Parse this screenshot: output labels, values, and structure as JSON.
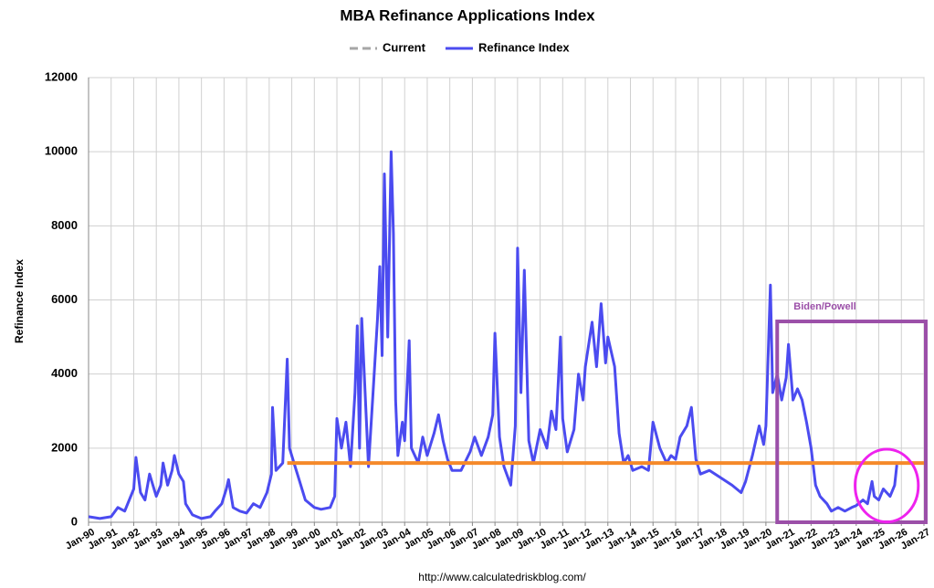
{
  "chart_data": {
    "type": "line",
    "title": "MBA Refinance Applications Index",
    "y_label": "Refinance Index",
    "source": "http://www.calculatedriskblog.com/",
    "xlim": [
      1990,
      2027
    ],
    "ylim": [
      0,
      12000
    ],
    "yticks": [
      0,
      2000,
      4000,
      6000,
      8000,
      10000,
      12000
    ],
    "xticks": [
      {
        "value": 1990,
        "label": "Jan-90"
      },
      {
        "value": 1991,
        "label": "Jan-91"
      },
      {
        "value": 1992,
        "label": "Jan-92"
      },
      {
        "value": 1993,
        "label": "Jan-93"
      },
      {
        "value": 1994,
        "label": "Jan-94"
      },
      {
        "value": 1995,
        "label": "Jan-95"
      },
      {
        "value": 1996,
        "label": "Jan-96"
      },
      {
        "value": 1997,
        "label": "Jan-97"
      },
      {
        "value": 1998,
        "label": "Jan-98"
      },
      {
        "value": 1999,
        "label": "Jan-99"
      },
      {
        "value": 2000,
        "label": "Jan-00"
      },
      {
        "value": 2001,
        "label": "Jan-01"
      },
      {
        "value": 2002,
        "label": "Jan-02"
      },
      {
        "value": 2003,
        "label": "Jan-03"
      },
      {
        "value": 2004,
        "label": "Jan-04"
      },
      {
        "value": 2005,
        "label": "Jan-05"
      },
      {
        "value": 2006,
        "label": "Jan-06"
      },
      {
        "value": 2007,
        "label": "Jan-07"
      },
      {
        "value": 2008,
        "label": "Jan-08"
      },
      {
        "value": 2009,
        "label": "Jan-09"
      },
      {
        "value": 2010,
        "label": "Jan-10"
      },
      {
        "value": 2011,
        "label": "Jan-11"
      },
      {
        "value": 2012,
        "label": "Jan-12"
      },
      {
        "value": 2013,
        "label": "Jan-13"
      },
      {
        "value": 2014,
        "label": "Jan-14"
      },
      {
        "value": 2015,
        "label": "Jan-15"
      },
      {
        "value": 2016,
        "label": "Jan-16"
      },
      {
        "value": 2017,
        "label": "Jan-17"
      },
      {
        "value": 2018,
        "label": "Jan-18"
      },
      {
        "value": 2019,
        "label": "Jan-19"
      },
      {
        "value": 2020,
        "label": "Jan-20"
      },
      {
        "value": 2021,
        "label": "Jan-21"
      },
      {
        "value": 2022,
        "label": "Jan-22"
      },
      {
        "value": 2023,
        "label": "Jan-23"
      },
      {
        "value": 2024,
        "label": "Jan-24"
      },
      {
        "value": 2025,
        "label": "Jan-25"
      },
      {
        "value": 2026,
        "label": "Jan-26"
      },
      {
        "value": 2027,
        "label": "Jan-27"
      }
    ],
    "grid": true,
    "series": [
      {
        "name": "Current",
        "color": "#f5892a",
        "legend_color": "#a6a6a6",
        "dashed_legend": true,
        "x": [
          1998.8,
          2027
        ],
        "values": [
          1600,
          1600
        ]
      },
      {
        "name": "Refinance Index",
        "color": "#4b4bf0",
        "x": [
          1990.0,
          1990.5,
          1991.0,
          1991.3,
          1991.6,
          1992.0,
          1992.1,
          1992.3,
          1992.5,
          1992.7,
          1992.9,
          1993.0,
          1993.2,
          1993.3,
          1993.5,
          1993.7,
          1993.8,
          1994.0,
          1994.2,
          1994.3,
          1994.6,
          1995.0,
          1995.4,
          1995.6,
          1995.9,
          1996.1,
          1996.2,
          1996.4,
          1996.7,
          1997.0,
          1997.3,
          1997.6,
          1997.9,
          1998.1,
          1998.15,
          1998.3,
          1998.6,
          1998.8,
          1998.9,
          1999.1,
          1999.3,
          1999.6,
          2000.0,
          2000.3,
          2000.7,
          2000.9,
          2001.0,
          2001.2,
          2001.4,
          2001.6,
          2001.8,
          2001.9,
          2002.0,
          2002.1,
          2002.4,
          2002.6,
          2002.8,
          2002.9,
          2003.0,
          2003.1,
          2003.25,
          2003.4,
          2003.5,
          2003.6,
          2003.7,
          2003.9,
          2004.0,
          2004.2,
          2004.3,
          2004.6,
          2004.8,
          2005.0,
          2005.3,
          2005.5,
          2005.7,
          2005.9,
          2006.1,
          2006.5,
          2006.9,
          2007.1,
          2007.4,
          2007.7,
          2007.9,
          2008.0,
          2008.2,
          2008.4,
          2008.7,
          2008.9,
          2009.0,
          2009.15,
          2009.3,
          2009.5,
          2009.7,
          2010.0,
          2010.3,
          2010.5,
          2010.7,
          2010.9,
          2011.0,
          2011.2,
          2011.5,
          2011.7,
          2011.9,
          2012.0,
          2012.3,
          2012.5,
          2012.7,
          2012.9,
          2013.0,
          2013.3,
          2013.5,
          2013.7,
          2013.9,
          2014.1,
          2014.5,
          2014.8,
          2015.0,
          2015.3,
          2015.6,
          2015.8,
          2016.0,
          2016.2,
          2016.5,
          2016.7,
          2016.9,
          2017.1,
          2017.5,
          2018.0,
          2018.5,
          2018.9,
          2019.1,
          2019.4,
          2019.7,
          2019.9,
          2020.0,
          2020.2,
          2020.3,
          2020.5,
          2020.7,
          2020.9,
          2021.0,
          2021.2,
          2021.4,
          2021.6,
          2021.8,
          2022.0,
          2022.2,
          2022.4,
          2022.7,
          2022.9,
          2023.2,
          2023.5,
          2023.8,
          2024.0,
          2024.3,
          2024.5,
          2024.7,
          2024.8,
          2025.0,
          2025.2,
          2025.5,
          2025.7,
          2025.8
        ],
        "values": [
          150,
          100,
          150,
          400,
          300,
          900,
          1750,
          800,
          600,
          1300,
          900,
          700,
          1000,
          1600,
          1000,
          1400,
          1800,
          1300,
          1100,
          500,
          200,
          100,
          150,
          300,
          500,
          900,
          1150,
          400,
          300,
          250,
          500,
          400,
          800,
          1300,
          3100,
          1400,
          1600,
          4400,
          2000,
          1600,
          1200,
          600,
          400,
          350,
          400,
          700,
          2800,
          2000,
          2700,
          1500,
          3500,
          5300,
          2000,
          5500,
          1500,
          3500,
          5500,
          6900,
          4500,
          9400,
          5000,
          10000,
          7800,
          3300,
          1800,
          2700,
          2200,
          4900,
          2000,
          1600,
          2300,
          1800,
          2400,
          2900,
          2200,
          1700,
          1400,
          1400,
          1900,
          2300,
          1800,
          2300,
          2900,
          5100,
          2300,
          1500,
          1000,
          2600,
          7400,
          3500,
          6800,
          2200,
          1600,
          2500,
          2000,
          3000,
          2500,
          5000,
          2800,
          1900,
          2500,
          4000,
          3300,
          4200,
          5400,
          4200,
          5900,
          4300,
          5000,
          4200,
          2400,
          1600,
          1800,
          1400,
          1500,
          1400,
          2700,
          2000,
          1600,
          1800,
          1700,
          2300,
          2600,
          3100,
          1700,
          1300,
          1400,
          1200,
          1000,
          800,
          1100,
          1800,
          2600,
          2100,
          2600,
          6400,
          3500,
          4000,
          3300,
          3900,
          4800,
          3300,
          3600,
          3300,
          2700,
          2000,
          1000,
          700,
          500,
          300,
          400,
          300,
          400,
          450,
          600,
          500,
          1100,
          700,
          600,
          900,
          700,
          1000,
          1550
        ]
      }
    ],
    "annotations": [
      {
        "text": "Biden/Powell",
        "shape": "box",
        "color": "#9b4fa8",
        "x": [
          2020.5,
          2027.08
        ],
        "y": [
          0,
          5420
        ]
      },
      {
        "shape": "ellipse",
        "color": "#ee22ee",
        "cx": 2025.35,
        "cy": 990,
        "rx": 1.4,
        "ry": 980
      }
    ]
  }
}
